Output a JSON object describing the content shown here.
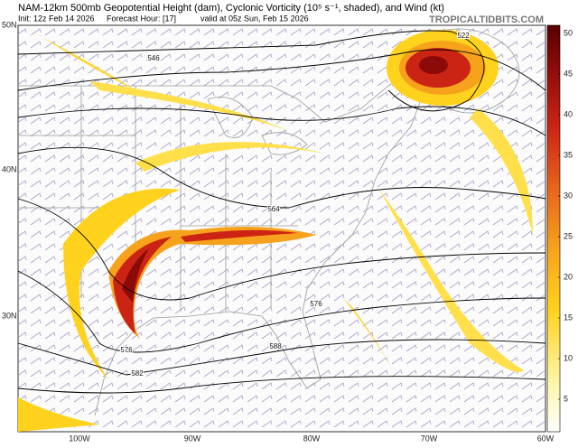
{
  "header": {
    "title": "NAM-12km 500mb Geopotential Height (dam), Cyclonic Vorticity (10⁵ s⁻¹, shaded), and Wind (kt)",
    "init": "Init: 12z Feb 14 2026",
    "forecast_hour": "Forecast Hour: [17]",
    "valid": "valid at 05z Sun, Feb 15 2026",
    "source": "TROPICALTIDBITS.COM"
  },
  "colorbar": {
    "ticks": [
      5,
      10,
      15,
      20,
      25,
      30,
      35,
      40,
      45,
      50
    ]
  },
  "latitude_labels": [
    "50N",
    "40N",
    "30N"
  ],
  "longitude_labels": [
    "100W",
    "90W",
    "80W",
    "70W",
    "60W"
  ],
  "contour_labels": [
    "522",
    "546",
    "564",
    "576",
    "576",
    "582",
    "588"
  ]
}
